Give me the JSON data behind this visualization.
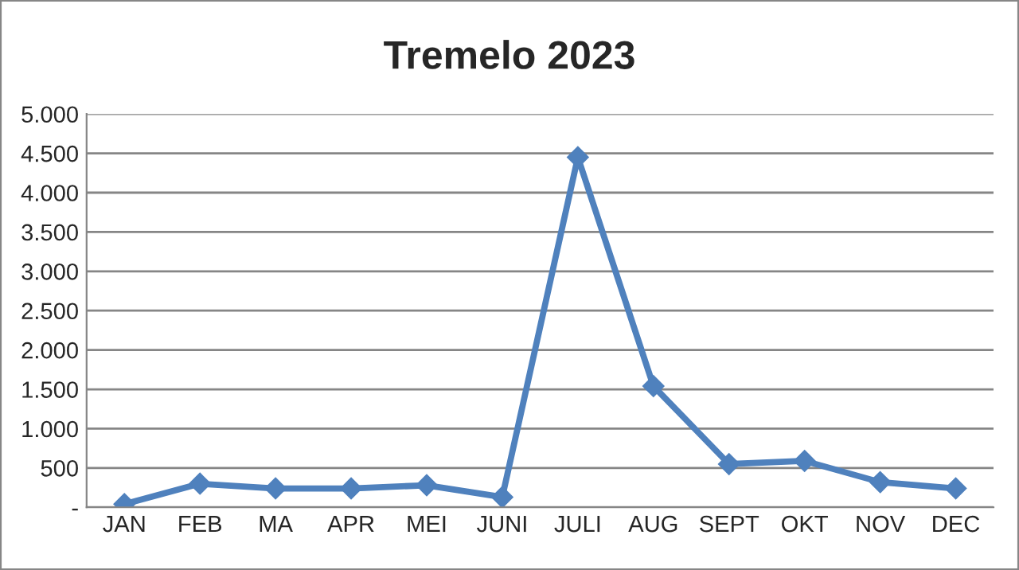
{
  "chart_data": {
    "type": "line",
    "title": "Tremelo 2023",
    "categories": [
      "JAN",
      "FEB",
      "MA",
      "APR",
      "MEI",
      "JUNI",
      "JULI",
      "AUG",
      "SEPT",
      "OKT",
      "NOV",
      "DEC"
    ],
    "series": [
      {
        "color": "#4f81bd",
        "values": [
          40,
          300,
          240,
          240,
          280,
          130,
          4450,
          1540,
          550,
          590,
          320,
          240
        ]
      }
    ],
    "ylim": [
      0,
      5000
    ],
    "yticks": [
      {
        "value": 0,
        "label": "-"
      },
      {
        "value": 500,
        "label": "500"
      },
      {
        "value": 1000,
        "label": "1.000"
      },
      {
        "value": 1500,
        "label": "1.500"
      },
      {
        "value": 2000,
        "label": "2.000"
      },
      {
        "value": 2500,
        "label": "2.500"
      },
      {
        "value": 3000,
        "label": "3.000"
      },
      {
        "value": 3500,
        "label": "3.500"
      },
      {
        "value": 4000,
        "label": "4.000"
      },
      {
        "value": 4500,
        "label": "4.500"
      },
      {
        "value": 5000,
        "label": "5.000"
      }
    ],
    "grid": "y",
    "marker": "diamond",
    "line_style": "solid"
  }
}
